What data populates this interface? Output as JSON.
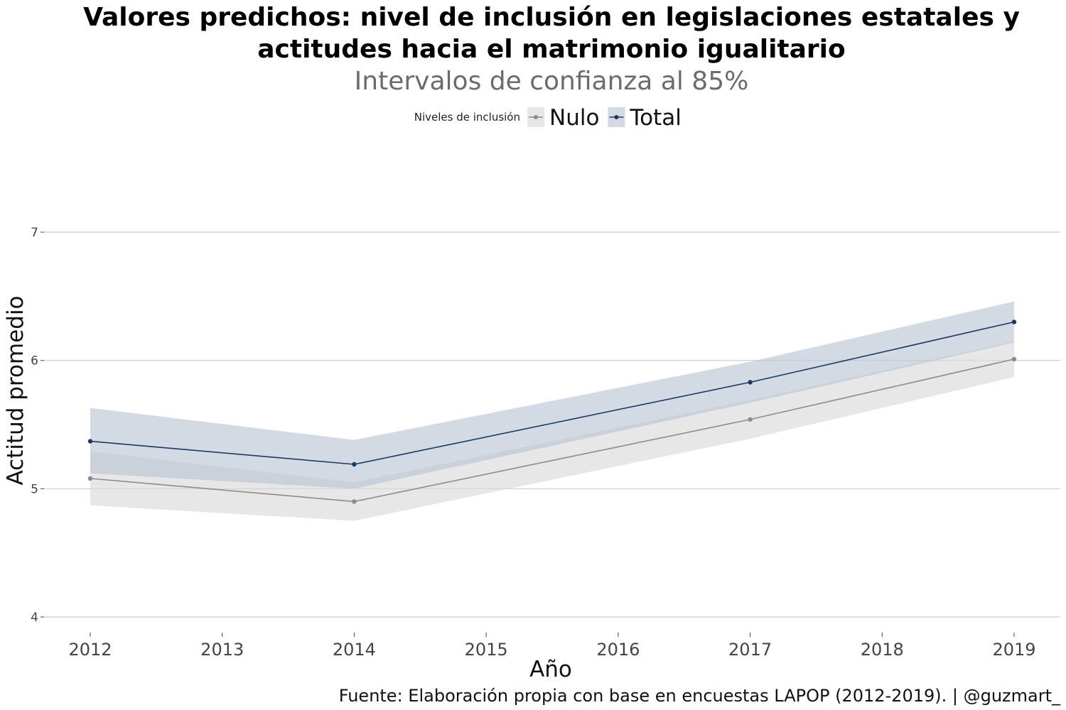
{
  "chart_data": {
    "type": "line",
    "title_lines": [
      "Valores predichos: nivel de inclusión en legislaciones estatales y",
      "actitudes hacia el matrimonio igualitario"
    ],
    "subtitle": "Intervalos de confianza al 85%",
    "xlabel": "Año",
    "ylabel": "Actitud promedio",
    "caption": "Fuente: Elaboración propia con base en encuestas LAPOP (2012-2019). | @guzmart_",
    "legend": {
      "title": "Niveles de inclusión",
      "placement": "top-center"
    },
    "x_ticks": [
      2012,
      2013,
      2014,
      2015,
      2016,
      2017,
      2018,
      2019
    ],
    "x_tick_labels": [
      "2012",
      "2013",
      "2014",
      "2015",
      "2016",
      "2017",
      "2018",
      "2019"
    ],
    "y_ticks": [
      4,
      5,
      6,
      7
    ],
    "y_tick_labels": [
      "4",
      "5",
      "6",
      "7"
    ],
    "xlim": [
      2011.65,
      2019.35
    ],
    "ylim": [
      3.95,
      7.05
    ],
    "grid": "horizontal",
    "series": [
      {
        "name": "Nulo",
        "color": "#8c8c8c",
        "ribbon_color": "#d9d9d9",
        "x": [
          2012,
          2014,
          2017,
          2019
        ],
        "y": [
          5.08,
          4.9,
          5.54,
          6.01
        ],
        "lower": [
          4.87,
          4.75,
          5.39,
          5.87
        ],
        "upper": [
          5.29,
          5.05,
          5.69,
          6.15
        ]
      },
      {
        "name": "Total",
        "color": "#1a3a63",
        "ribbon_color": "#b8c3d3",
        "x": [
          2012,
          2014,
          2017,
          2019
        ],
        "y": [
          5.37,
          5.19,
          5.83,
          6.3
        ],
        "lower": [
          5.12,
          5.0,
          5.67,
          6.14
        ],
        "upper": [
          5.63,
          5.38,
          5.99,
          6.46
        ]
      }
    ]
  }
}
